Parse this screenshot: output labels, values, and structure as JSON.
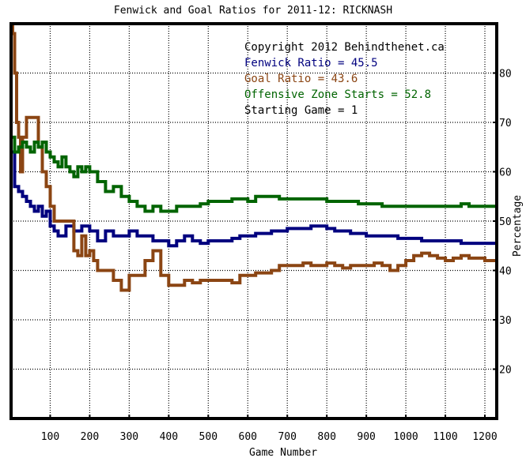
{
  "chart_data": {
    "type": "line",
    "title": "Fenwick and Goal Ratios for 2011-12: RICKNASH",
    "xlabel": "Game Number",
    "ylabel": "Percentage",
    "xlim": [
      1,
      1230
    ],
    "ylim": [
      10,
      90
    ],
    "x_ticks": [
      100,
      200,
      300,
      400,
      500,
      600,
      700,
      800,
      900,
      1000,
      1100,
      1200
    ],
    "y_ticks": [
      20,
      30,
      40,
      50,
      60,
      70,
      80
    ],
    "grid": true,
    "legend_position": "top-right",
    "annotations": [
      {
        "text": "Copyright 2012 Behindthenet.ca",
        "color": "#000000"
      },
      {
        "text": "Fenwick Ratio = 45.5",
        "color": "#00007f"
      },
      {
        "text": "Goal Ratio = 43.6",
        "color": "#8b4513"
      },
      {
        "text": "Offensive Zone Starts = 52.8",
        "color": "#006400"
      },
      {
        "text": "Starting Game = 1",
        "color": "#000000"
      }
    ],
    "series": [
      {
        "color": "#00007f",
        "x": [
          1,
          10,
          20,
          30,
          40,
          50,
          60,
          70,
          80,
          90,
          100,
          110,
          120,
          140,
          160,
          180,
          200,
          220,
          240,
          260,
          280,
          300,
          320,
          340,
          360,
          380,
          400,
          420,
          440,
          460,
          480,
          500,
          520,
          540,
          560,
          580,
          600,
          620,
          640,
          660,
          680,
          700,
          720,
          740,
          760,
          780,
          800,
          820,
          840,
          860,
          880,
          900,
          920,
          940,
          960,
          980,
          1000,
          1020,
          1040,
          1060,
          1080,
          1100,
          1120,
          1140,
          1160,
          1180,
          1200,
          1230
        ],
        "y": [
          64,
          57,
          56,
          55,
          54,
          53,
          52,
          53,
          51,
          52,
          49,
          48,
          47,
          49,
          48,
          49,
          48,
          46,
          48,
          47,
          47,
          48,
          47,
          47,
          46,
          46,
          45,
          46,
          47,
          46,
          45.5,
          46,
          46,
          46,
          46.5,
          47,
          47,
          47.5,
          47.5,
          48,
          48,
          48.5,
          48.5,
          48.5,
          49,
          49,
          48.5,
          48,
          48,
          47.5,
          47.5,
          47,
          47,
          47,
          47,
          46.5,
          46.5,
          46.5,
          46,
          46,
          46,
          46,
          46,
          45.5,
          45.5,
          45.5,
          45.5,
          45.5
        ]
      },
      {
        "color": "#8b4513",
        "x": [
          1,
          5,
          10,
          15,
          20,
          25,
          30,
          40,
          50,
          55,
          60,
          70,
          80,
          90,
          100,
          110,
          120,
          140,
          160,
          170,
          180,
          190,
          200,
          210,
          220,
          240,
          260,
          280,
          290,
          300,
          320,
          340,
          360,
          380,
          400,
          420,
          440,
          460,
          480,
          500,
          520,
          540,
          560,
          580,
          600,
          620,
          640,
          660,
          680,
          700,
          720,
          740,
          760,
          780,
          800,
          820,
          840,
          860,
          880,
          900,
          920,
          940,
          960,
          980,
          1000,
          1020,
          1040,
          1060,
          1080,
          1100,
          1120,
          1140,
          1160,
          1180,
          1200,
          1230
        ],
        "y": [
          90,
          88,
          80,
          70,
          67,
          60,
          67,
          71,
          71,
          71,
          71,
          65,
          60,
          57,
          53,
          50,
          50,
          50,
          44,
          43,
          47,
          43,
          44,
          42,
          40,
          40,
          38,
          36,
          36,
          39,
          39,
          42,
          44,
          39,
          37,
          37,
          38,
          37.5,
          38,
          38,
          38,
          38,
          37.5,
          39,
          39,
          39.5,
          39.5,
          40,
          41,
          41,
          41,
          41.5,
          41,
          41,
          41.5,
          41,
          40.5,
          41,
          41,
          41,
          41.5,
          41,
          40,
          41,
          42,
          43,
          43.5,
          43,
          42.5,
          42,
          42.5,
          43,
          42.5,
          42.5,
          42,
          43.6
        ]
      },
      {
        "color": "#006400",
        "x": [
          1,
          10,
          20,
          30,
          40,
          50,
          60,
          70,
          80,
          90,
          100,
          110,
          120,
          130,
          140,
          150,
          160,
          170,
          180,
          190,
          200,
          220,
          240,
          260,
          280,
          300,
          320,
          340,
          360,
          380,
          400,
          420,
          440,
          460,
          480,
          500,
          520,
          540,
          560,
          580,
          600,
          620,
          640,
          660,
          680,
          700,
          720,
          740,
          760,
          780,
          800,
          820,
          840,
          860,
          880,
          900,
          920,
          940,
          960,
          980,
          1000,
          1020,
          1040,
          1060,
          1080,
          1100,
          1120,
          1140,
          1160,
          1180,
          1200,
          1230
        ],
        "y": [
          67,
          64,
          65,
          66,
          65,
          64,
          66,
          65,
          66,
          64,
          63,
          62,
          61,
          63,
          61,
          60,
          59,
          61,
          60,
          61,
          60,
          58,
          56,
          57,
          55,
          54,
          53,
          52,
          53,
          52,
          52,
          53,
          53,
          53,
          53.5,
          54,
          54,
          54,
          54.5,
          54.5,
          54,
          55,
          55,
          55,
          54.5,
          54.5,
          54.5,
          54.5,
          54.5,
          54.5,
          54,
          54,
          54,
          54,
          53.5,
          53.5,
          53.5,
          53,
          53,
          53,
          53,
          53,
          53,
          53,
          53,
          53,
          53,
          53.5,
          53,
          53,
          53,
          52.8
        ]
      }
    ]
  }
}
